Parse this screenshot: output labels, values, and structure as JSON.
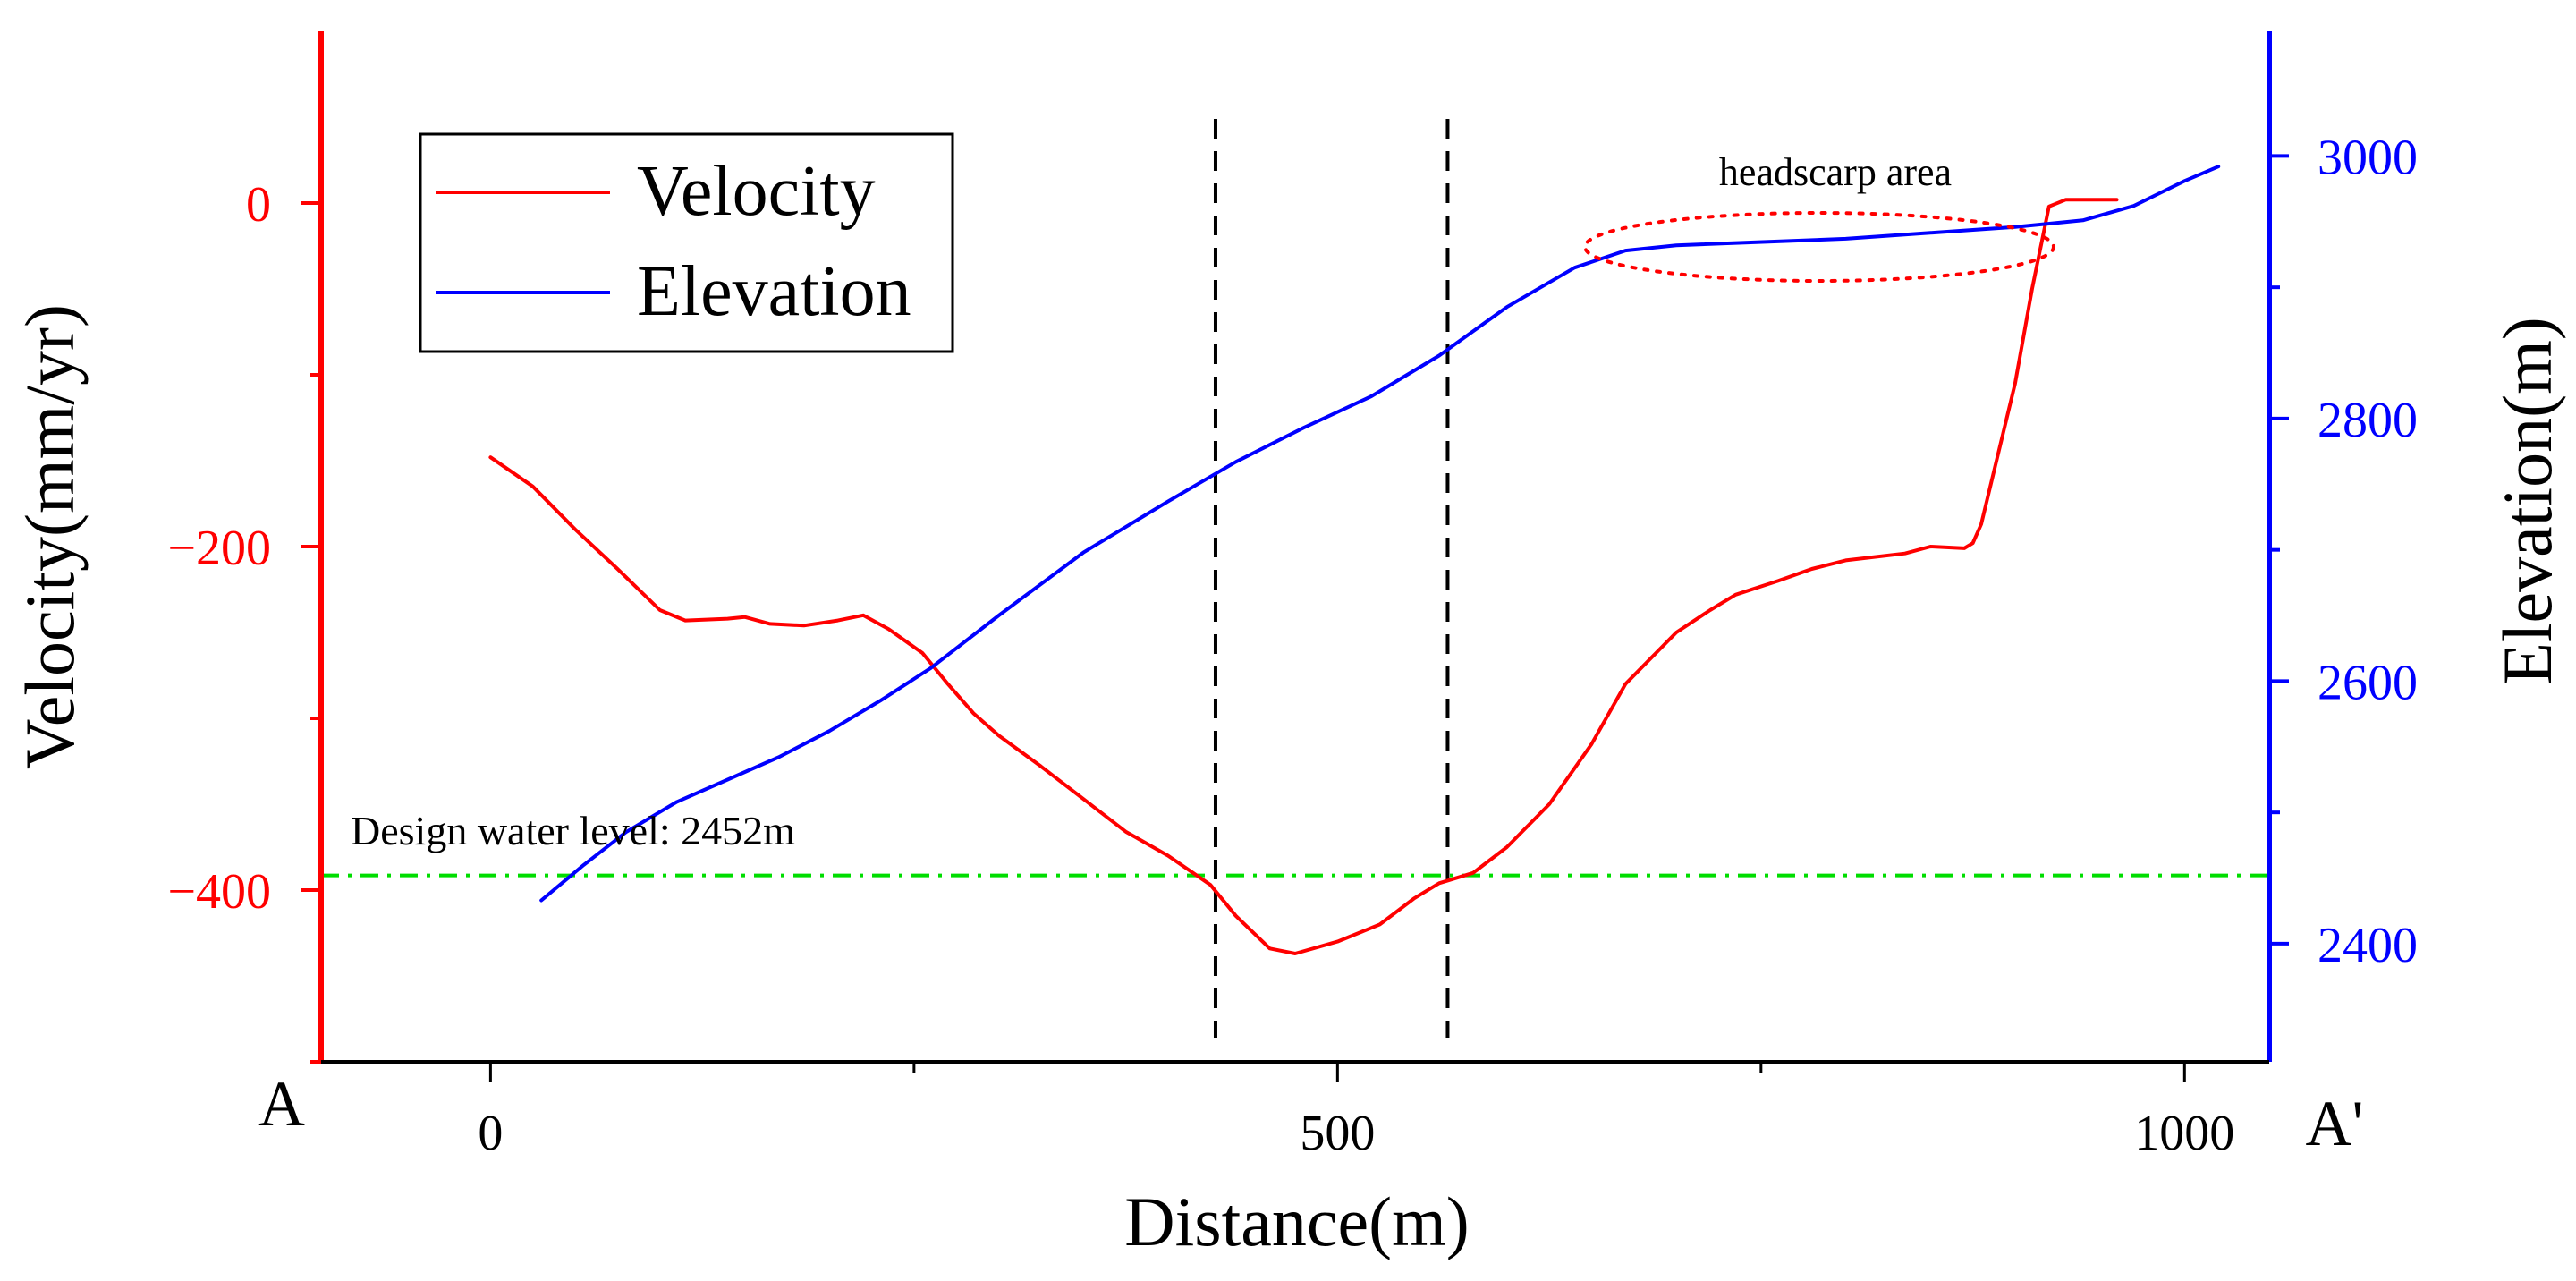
{
  "chart_data": {
    "type": "line",
    "xlabel": "Distance(m)",
    "ylabel_left": "Velocity(mm/yr)",
    "ylabel_right": "Elevation(m)",
    "xlim": [
      -100,
      1050
    ],
    "ylim_left": [
      -500,
      100
    ],
    "ylim_right": [
      2310,
      3095
    ],
    "x_ticks": [
      0,
      500,
      1000
    ],
    "x_tick_labels": [
      "0",
      "500",
      "1000"
    ],
    "left_ticks": [
      0,
      -200,
      -400
    ],
    "left_tick_labels": [
      "0",
      "−200",
      "−400"
    ],
    "right_ticks": [
      3000,
      2800,
      2600,
      2400
    ],
    "right_tick_labels": [
      "3000",
      "2800",
      "2600",
      "2400"
    ],
    "profile_start_label": "A",
    "profile_end_label": "A'",
    "legend": {
      "position": "top-left",
      "entries": [
        {
          "label": "Velocity",
          "color": "#ff0000"
        },
        {
          "label": "Elevation",
          "color": "#0000ff"
        }
      ]
    },
    "series": [
      {
        "name": "Velocity",
        "axis": "left",
        "color": "#ff0000",
        "x": [
          0,
          25,
          50,
          75,
          100,
          115,
          140,
          150,
          165,
          185,
          205,
          220,
          235,
          255,
          270,
          285,
          300,
          325,
          350,
          375,
          400,
          425,
          440,
          460,
          475,
          500,
          525,
          545,
          560,
          580,
          600,
          625,
          650,
          670,
          700,
          720,
          735,
          760,
          780,
          800,
          835,
          850,
          870,
          875,
          880,
          900,
          910,
          920,
          930,
          960
        ],
        "y": [
          -148,
          -165,
          -190,
          -213,
          -237,
          -243,
          -242,
          -241,
          -245,
          -246,
          -243,
          -240,
          -248,
          -262,
          -280,
          -297,
          -310,
          -328,
          -347,
          -366,
          -380,
          -397,
          -415,
          -434,
          -437,
          -430,
          -420,
          -405,
          -396,
          -390,
          -375,
          -350,
          -315,
          -280,
          -250,
          -237,
          -228,
          -220,
          -213,
          -208,
          -204,
          -200,
          -201,
          -198,
          -187,
          -105,
          -50,
          -2,
          2,
          2
        ]
      },
      {
        "name": "Elevation",
        "axis": "right",
        "color": "#0000ff",
        "x": [
          30,
          55,
          80,
          110,
          140,
          170,
          200,
          230,
          260,
          300,
          350,
          400,
          440,
          480,
          520,
          560,
          600,
          640,
          670,
          700,
          800,
          900,
          940,
          970,
          1000,
          1020
        ],
        "y": [
          2433,
          2460,
          2485,
          2508,
          2525,
          2542,
          2562,
          2585,
          2610,
          2650,
          2698,
          2737,
          2767,
          2793,
          2817,
          2848,
          2885,
          2915,
          2928,
          2932,
          2937,
          2946,
          2951,
          2962,
          2981,
          2992
        ]
      }
    ],
    "reference_lines": [
      {
        "type": "horizontal",
        "axis": "right",
        "y": 2452,
        "color": "#00dd00",
        "style": "dash-dot",
        "label": "Design water level: 2452m"
      },
      {
        "type": "vertical",
        "x": 428,
        "color": "#000000",
        "style": "dashed"
      },
      {
        "type": "vertical",
        "x": 565,
        "color": "#000000",
        "style": "dashed"
      }
    ],
    "annotations": [
      {
        "text": "headscarp area",
        "shape": "dotted ellipse",
        "color": "#ff0000",
        "x_range": [
          670,
          920
        ],
        "y_center": 2935
      }
    ]
  }
}
